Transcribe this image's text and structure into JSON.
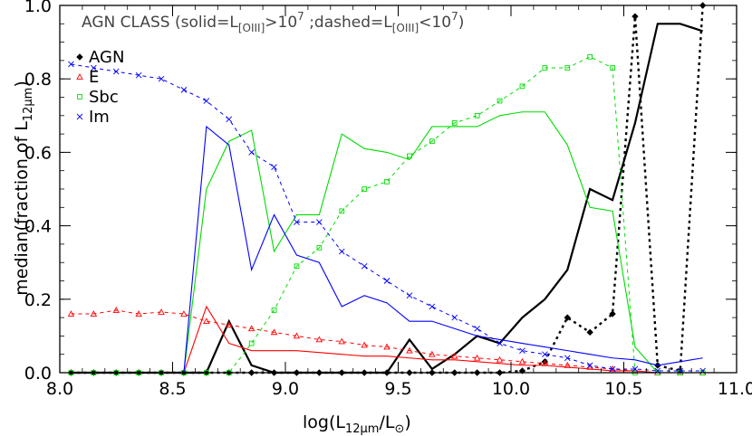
{
  "chart_data": {
    "type": "line",
    "title": "",
    "annotation": {
      "prefix": "AGN CLASS (solid=L",
      "sub1": "[OIII]",
      "mid": ">10",
      "sup1": "7",
      "mid2": " ;dashed=L",
      "sub2": "[OIII]",
      "mid3": "<10",
      "sup2": "7",
      "suffix": ")"
    },
    "xlabel": {
      "prefix": "log(L",
      "sub": "12μm",
      "mid": "/L",
      "sub2": "⊙",
      "suffix": ")"
    },
    "ylabel": {
      "prefix": "median(fraction of L",
      "sub": "12μm",
      "suffix": ")"
    },
    "xlim": [
      8.0,
      11.0
    ],
    "ylim": [
      0.0,
      1.0
    ],
    "xticks": [
      "8.0",
      "8.5",
      "9.0",
      "9.5",
      "10.0",
      "10.5",
      "11.0"
    ],
    "yticks": [
      "0.0",
      "0.2",
      "0.4",
      "0.6",
      "0.8",
      "1.0"
    ],
    "legend_position": "top-left",
    "x": [
      8.05,
      8.15,
      8.25,
      8.35,
      8.45,
      8.55,
      8.65,
      8.75,
      8.85,
      8.95,
      9.05,
      9.15,
      9.25,
      9.35,
      9.45,
      9.55,
      9.65,
      9.75,
      9.85,
      9.95,
      10.05,
      10.15,
      10.25,
      10.35,
      10.45,
      10.55,
      10.65,
      10.75,
      10.85
    ],
    "series": [
      {
        "name": "AGN",
        "color": "#000000",
        "marker": "diamond",
        "solid": [
          0,
          0,
          0,
          0,
          0,
          0,
          0,
          0.14,
          0.02,
          0,
          0,
          0,
          0,
          0,
          0,
          0.09,
          0.01,
          0.05,
          0.1,
          0.08,
          0.15,
          0.2,
          0.28,
          0.5,
          0.47,
          0.68,
          0.95,
          0.95,
          0.93
        ],
        "dashed": [
          0,
          0,
          0,
          0,
          0,
          0,
          0,
          0,
          0,
          0,
          0,
          0,
          0,
          0,
          0,
          0,
          0,
          0,
          0,
          0,
          0.005,
          0.03,
          0.15,
          0.11,
          0.16,
          0.97,
          0.02,
          0.005,
          1.0
        ]
      },
      {
        "name": "E",
        "color": "#ff0000",
        "marker": "triangle",
        "solid": [
          0,
          0,
          0,
          0,
          0,
          0,
          0.18,
          0.08,
          0.06,
          0.06,
          0.06,
          0.055,
          0.05,
          0.045,
          0.045,
          0.04,
          0.035,
          0.035,
          0.03,
          0.025,
          0.02,
          0.02,
          0.015,
          0.01,
          0.005,
          0.005,
          0,
          0,
          0
        ],
        "dashed": [
          0.16,
          0.16,
          0.17,
          0.16,
          0.165,
          0.16,
          0.14,
          0.13,
          0.12,
          0.11,
          0.1,
          0.09,
          0.085,
          0.075,
          0.07,
          0.06,
          0.05,
          0.045,
          0.04,
          0.035,
          0.03,
          0.025,
          0.02,
          0.015,
          0.01,
          0.005,
          0,
          0,
          0
        ]
      },
      {
        "name": "Sbc",
        "color": "#00dd00",
        "marker": "square",
        "solid": [
          0,
          0,
          0,
          0,
          0,
          0,
          0.5,
          0.63,
          0.66,
          0.33,
          0.43,
          0.43,
          0.65,
          0.61,
          0.6,
          0.58,
          0.67,
          0.67,
          0.67,
          0.7,
          0.71,
          0.71,
          0.62,
          0.45,
          0.44,
          0.07,
          0,
          0,
          0
        ],
        "dashed": [
          0,
          0,
          0,
          0,
          0,
          0,
          0,
          0,
          0.08,
          0.17,
          0.29,
          0.34,
          0.44,
          0.5,
          0.52,
          0.59,
          0.63,
          0.68,
          0.7,
          0.74,
          0.78,
          0.83,
          0.83,
          0.86,
          0.83,
          0,
          0,
          0,
          0
        ]
      },
      {
        "name": "Im",
        "color": "#0000ff",
        "marker": "cross",
        "solid": [
          0,
          0,
          0,
          0,
          0,
          0,
          0.67,
          0.62,
          0.28,
          0.43,
          0.32,
          0.3,
          0.18,
          0.21,
          0.19,
          0.14,
          0.14,
          0.12,
          0.1,
          0.09,
          0.08,
          0.07,
          0.06,
          0.05,
          0.04,
          0.035,
          0.02,
          0.03,
          0.04
        ],
        "dashed": [
          0.84,
          0.83,
          0.82,
          0.81,
          0.8,
          0.77,
          0.74,
          0.69,
          0.6,
          0.56,
          0.41,
          0.41,
          0.33,
          0.29,
          0.25,
          0.21,
          0.18,
          0.15,
          0.12,
          0.08,
          0.06,
          0.05,
          0.04,
          0.02,
          0.01,
          0.01,
          0.005,
          0.005,
          0.005
        ]
      }
    ]
  }
}
